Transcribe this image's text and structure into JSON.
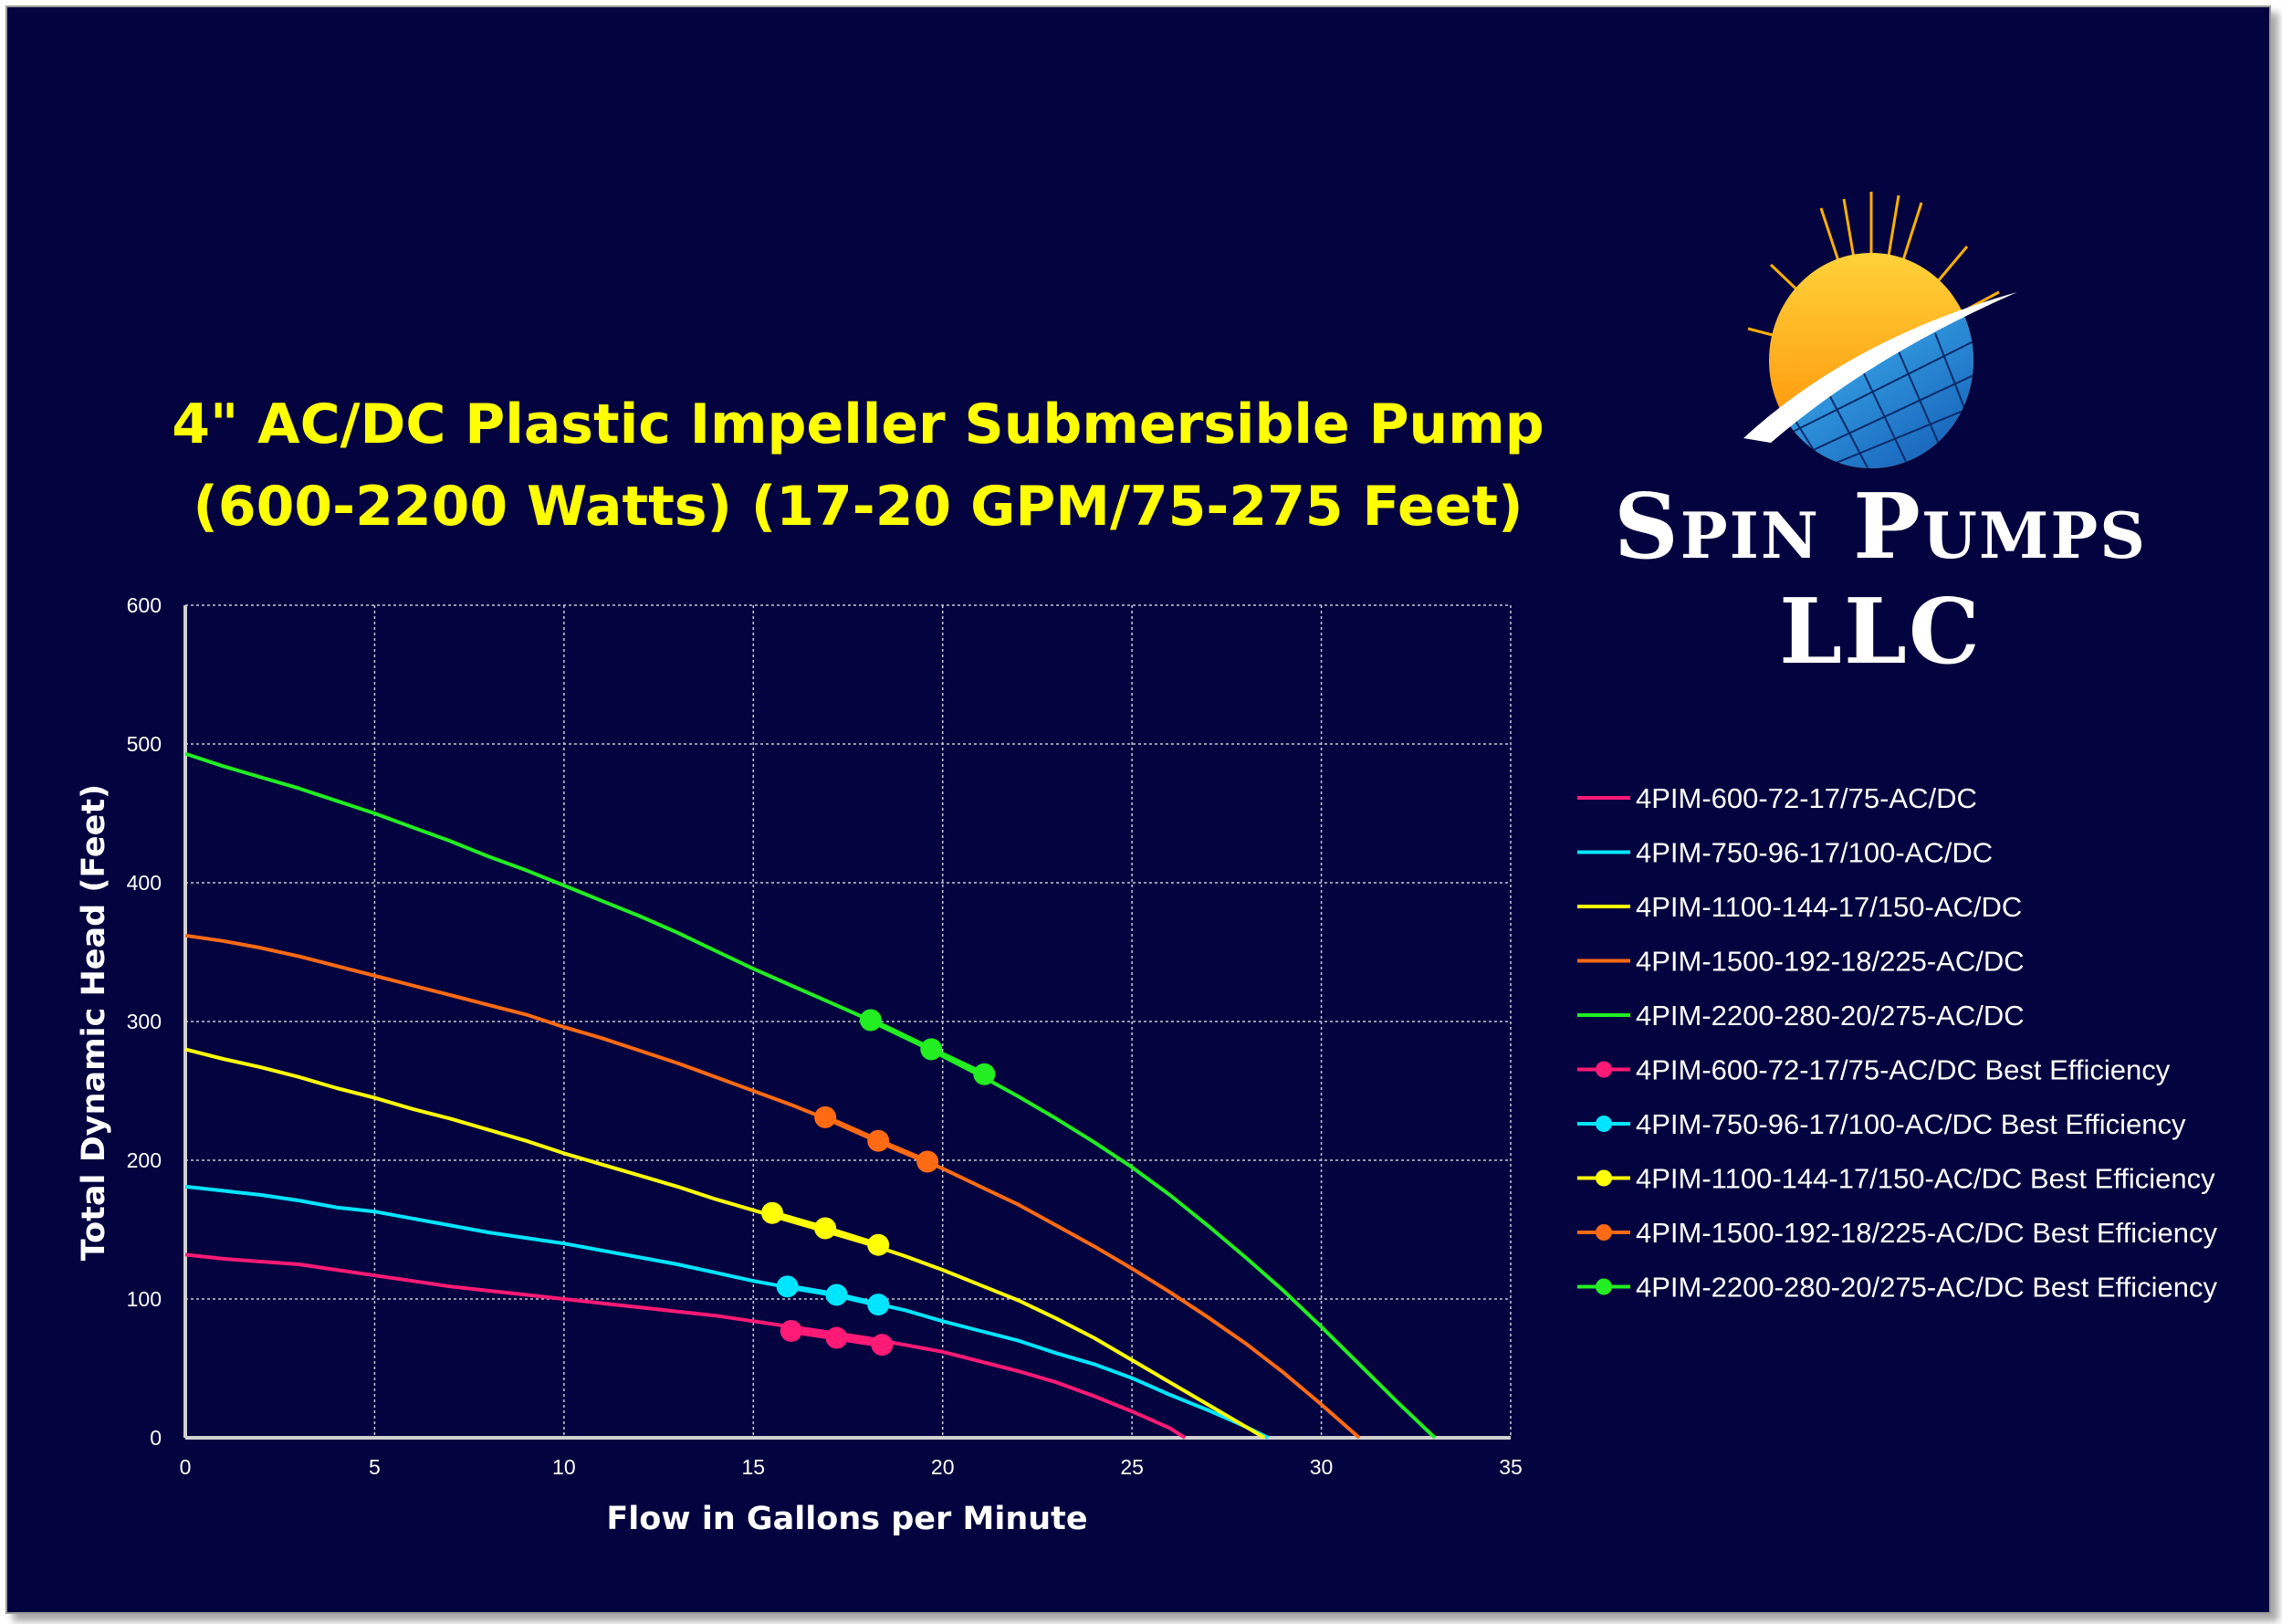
{
  "header": {
    "title_line1": "4\" AC/DC Plastic Impeller Submersible Pump",
    "title_line2": "(600-2200 Watts) (17-20 GPM/75-275 Feet)",
    "brand": "Spin Pumps LLC",
    "logo_icon": "sun-solar-panel-logo-icon"
  },
  "chart_data": {
    "type": "line",
    "xlabel": "Flow in Gallons per Minute",
    "ylabel": "Total Dynamic Head (Feet)",
    "xlim": [
      0,
      35
    ],
    "ylim": [
      0,
      600
    ],
    "xticks": [
      0,
      5,
      10,
      15,
      20,
      25,
      30,
      35
    ],
    "yticks": [
      0,
      100,
      200,
      300,
      400,
      500,
      600
    ],
    "grid": true,
    "legend_position": "right",
    "series": [
      {
        "name": "4PIM-600-72-17/75-AC/DC",
        "color": "#ff1a75",
        "x": [
          0,
          1,
          2,
          3,
          4,
          5,
          6,
          7,
          8,
          9,
          10,
          11,
          12,
          13,
          14,
          15,
          16,
          17,
          18,
          19,
          20,
          21,
          22,
          23,
          24,
          25,
          26,
          26.4
        ],
        "y": [
          132,
          129,
          127,
          125,
          121,
          117,
          113,
          109,
          106,
          103,
          100,
          97,
          94,
          91,
          88,
          84,
          80,
          76,
          72,
          67,
          62,
          55,
          48,
          40,
          30,
          19,
          7,
          0
        ]
      },
      {
        "name": "4PIM-750-96-17/100-AC/DC",
        "color": "#00e5ff",
        "x": [
          0,
          1,
          2,
          3,
          4,
          5,
          6,
          7,
          8,
          9,
          10,
          11,
          12,
          13,
          14,
          15,
          16,
          17,
          18,
          19,
          20,
          21,
          22,
          23,
          24,
          25,
          26,
          27,
          28,
          28.6
        ],
        "y": [
          181,
          178,
          175,
          171,
          166,
          163,
          158,
          153,
          148,
          144,
          140,
          135,
          130,
          125,
          119,
          113,
          108,
          104,
          98,
          92,
          84,
          77,
          70,
          61,
          53,
          43,
          31,
          20,
          8,
          0
        ]
      },
      {
        "name": "4PIM-1100-144-17/150-AC/DC",
        "color": "#ffff00",
        "x": [
          0,
          1,
          2,
          3,
          4,
          5,
          6,
          7,
          8,
          9,
          10,
          11,
          12,
          13,
          14,
          15,
          16,
          17,
          18,
          19,
          20,
          21,
          22,
          23,
          24,
          25,
          26,
          27,
          28,
          28.5
        ],
        "y": [
          280,
          273,
          267,
          260,
          252,
          245,
          237,
          230,
          222,
          214,
          205,
          197,
          189,
          181,
          172,
          164,
          156,
          148,
          140,
          131,
          121,
          110,
          99,
          86,
          72,
          56,
          40,
          24,
          8,
          0
        ]
      },
      {
        "name": "4PIM-1500-192-18/225-AC/DC",
        "color": "#ff6a13",
        "x": [
          0,
          1,
          2,
          3,
          4,
          5,
          6,
          7,
          8,
          9,
          10,
          11,
          12,
          13,
          14,
          15,
          16,
          17,
          18,
          19,
          20,
          21,
          22,
          23,
          24,
          25,
          26,
          27,
          28,
          29,
          30,
          31
        ],
        "y": [
          362,
          358,
          353,
          347,
          340,
          333,
          326,
          319,
          312,
          305,
          296,
          288,
          279,
          270,
          260,
          250,
          240,
          229,
          218,
          206,
          194,
          181,
          168,
          153,
          138,
          122,
          105,
          87,
          68,
          47,
          24,
          0
        ]
      },
      {
        "name": "4PIM-2200-280-20/275-AC/DC",
        "color": "#22ee22",
        "x": [
          0,
          1,
          2,
          3,
          4,
          5,
          6,
          7,
          8,
          9,
          10,
          11,
          12,
          13,
          14,
          15,
          16,
          17,
          18,
          19,
          20,
          21,
          22,
          23,
          24,
          25,
          26,
          27,
          28,
          29,
          30,
          31,
          32,
          33
        ],
        "y": [
          493,
          484,
          476,
          468,
          459,
          450,
          440,
          430,
          419,
          409,
          398,
          387,
          376,
          364,
          351,
          338,
          326,
          314,
          302,
          289,
          275,
          261,
          246,
          230,
          213,
          195,
          175,
          153,
          130,
          106,
          80,
          53,
          26,
          0
        ]
      }
    ],
    "best_efficiency": [
      {
        "name": "4PIM-600-72-17/75-AC/DC Best Efficiency",
        "color": "#ff1a75",
        "x": [
          16.0,
          17.2,
          18.4
        ],
        "y": [
          77,
          72,
          67
        ]
      },
      {
        "name": "4PIM-750-96-17/100-AC/DC Best Efficiency",
        "color": "#00e5ff",
        "x": [
          15.9,
          17.2,
          18.3
        ],
        "y": [
          109,
          103,
          96
        ]
      },
      {
        "name": "4PIM-1100-144-17/150-AC/DC Best Efficiency",
        "color": "#ffff00",
        "x": [
          15.5,
          16.9,
          18.3
        ],
        "y": [
          162,
          151,
          139
        ]
      },
      {
        "name": "4PIM-1500-192-18/225-AC/DC Best Efficiency",
        "color": "#ff6a13",
        "x": [
          16.9,
          18.3,
          19.6
        ],
        "y": [
          231,
          214,
          199
        ]
      },
      {
        "name": "4PIM-2200-280-20/275-AC/DC Best Efficiency",
        "color": "#22ee22",
        "x": [
          18.1,
          19.7,
          21.1
        ],
        "y": [
          301,
          280,
          262
        ]
      }
    ]
  }
}
